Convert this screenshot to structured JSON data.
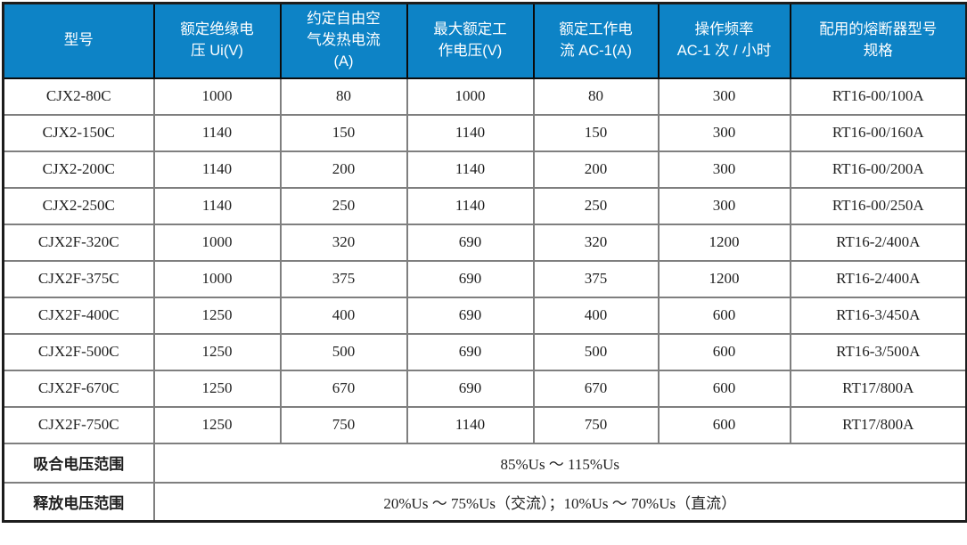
{
  "page": {
    "background": "#ffffff"
  },
  "table": {
    "colors": {
      "header_bg": "#0d83c6",
      "header_text": "#ffffff",
      "grid_line": "#7f7f7f",
      "frame_line": "#1c1c1c",
      "body_text": "#1f1f1f"
    },
    "header": {
      "columns": [
        {
          "label": "型号"
        },
        {
          "label": "额定绝缘电\n压 Ui(V)"
        },
        {
          "label": "约定自由空\n气发热电流\n(A)"
        },
        {
          "label": "最大额定工\n作电压(V)"
        },
        {
          "label": "额定工作电\n流 AC-1(A)"
        },
        {
          "label": "操作频率\nAC-1 次 / 小时"
        },
        {
          "label": "配用的熔断器型号\n规格"
        }
      ]
    },
    "rows": [
      [
        "CJX2-80C",
        "1000",
        "80",
        "1000",
        "80",
        "300",
        "RT16-00/100A"
      ],
      [
        "CJX2-150C",
        "1140",
        "150",
        "1140",
        "150",
        "300",
        "RT16-00/160A"
      ],
      [
        "CJX2-200C",
        "1140",
        "200",
        "1140",
        "200",
        "300",
        "RT16-00/200A"
      ],
      [
        "CJX2-250C",
        "1140",
        "250",
        "1140",
        "250",
        "300",
        "RT16-00/250A"
      ],
      [
        "CJX2F-320C",
        "1000",
        "320",
        "690",
        "320",
        "1200",
        "RT16-2/400A"
      ],
      [
        "CJX2F-375C",
        "1000",
        "375",
        "690",
        "375",
        "1200",
        "RT16-2/400A"
      ],
      [
        "CJX2F-400C",
        "1250",
        "400",
        "690",
        "400",
        "600",
        "RT16-3/450A"
      ],
      [
        "CJX2F-500C",
        "1250",
        "500",
        "690",
        "500",
        "600",
        "RT16-3/500A"
      ],
      [
        "CJX2F-670C",
        "1250",
        "670",
        "690",
        "670",
        "600",
        "RT17/800A"
      ],
      [
        "CJX2F-750C",
        "1250",
        "750",
        "1140",
        "750",
        "600",
        "RT17/800A"
      ]
    ],
    "footer": [
      {
        "label": "吸合电压范围",
        "value": "85%Us ～ 115%Us"
      },
      {
        "label": "释放电压范围",
        "value": "20%Us ～ 75%Us（交流）；10%Us ～ 70%Us（直流）"
      }
    ]
  }
}
